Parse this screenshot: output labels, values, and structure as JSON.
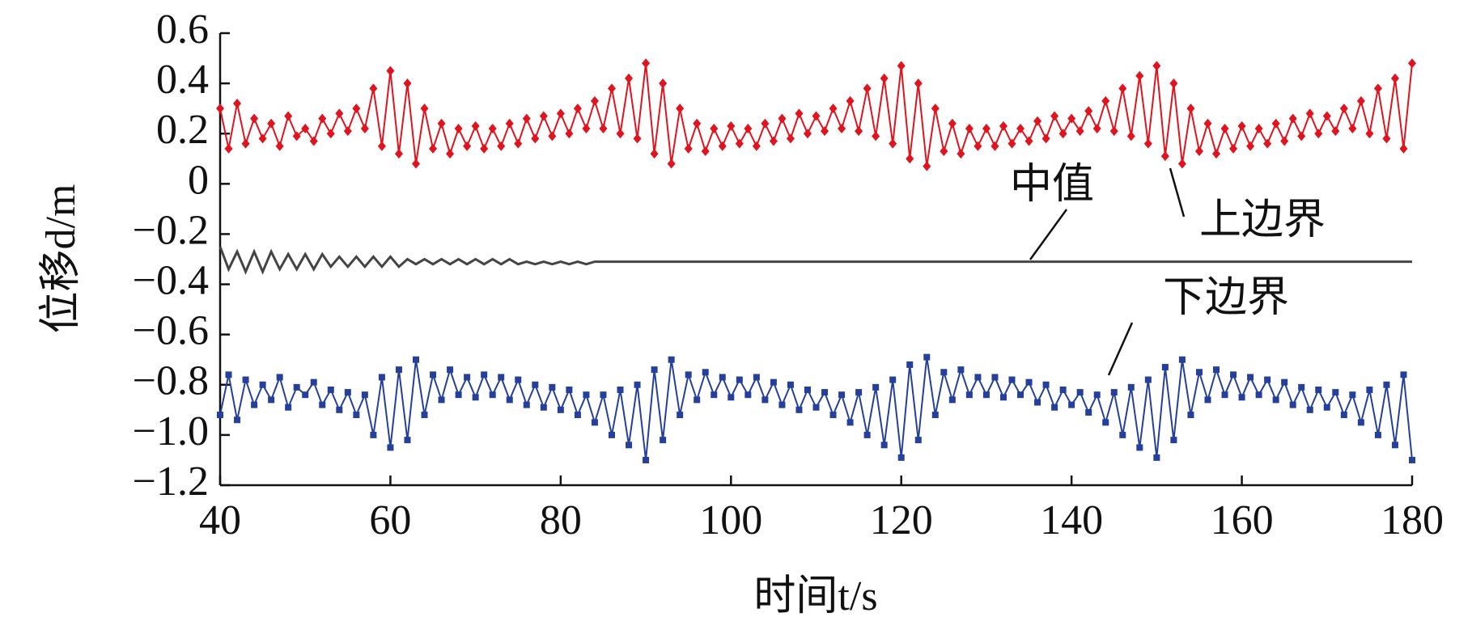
{
  "chart_data": {
    "type": "line",
    "xlabel": "时间t/s",
    "ylabel": "位移d/m",
    "annotations": [
      "中值",
      "上边界",
      "下边界"
    ],
    "x": [
      40,
      41,
      42,
      43,
      44,
      45,
      46,
      47,
      48,
      49,
      50,
      51,
      52,
      53,
      54,
      55,
      56,
      57,
      58,
      59,
      60,
      61,
      62,
      63,
      64,
      65,
      66,
      67,
      68,
      69,
      70,
      71,
      72,
      73,
      74,
      75,
      76,
      77,
      78,
      79,
      80,
      81,
      82,
      83,
      84,
      85,
      86,
      87,
      88,
      89,
      90,
      91,
      92,
      93,
      94,
      95,
      96,
      97,
      98,
      99,
      100,
      101,
      102,
      103,
      104,
      105,
      106,
      107,
      108,
      109,
      110,
      111,
      112,
      113,
      114,
      115,
      116,
      117,
      118,
      119,
      120,
      121,
      122,
      123,
      124,
      125,
      126,
      127,
      128,
      129,
      130,
      131,
      132,
      133,
      134,
      135,
      136,
      137,
      138,
      139,
      140,
      141,
      142,
      143,
      144,
      145,
      146,
      147,
      148,
      149,
      150,
      151,
      152,
      153,
      154,
      155,
      156,
      157,
      158,
      159,
      160,
      161,
      162,
      163,
      164,
      165,
      166,
      167,
      168,
      169,
      170,
      171,
      172,
      173,
      174,
      175,
      176,
      177,
      178,
      179,
      180
    ],
    "series": [
      {
        "name": "上边界",
        "color": "#e0141e",
        "marker": "diamond",
        "values": [
          0.3,
          0.14,
          0.32,
          0.16,
          0.26,
          0.18,
          0.24,
          0.15,
          0.27,
          0.19,
          0.22,
          0.17,
          0.26,
          0.2,
          0.28,
          0.21,
          0.3,
          0.22,
          0.38,
          0.15,
          0.45,
          0.12,
          0.4,
          0.08,
          0.3,
          0.14,
          0.24,
          0.12,
          0.22,
          0.15,
          0.23,
          0.14,
          0.22,
          0.15,
          0.24,
          0.16,
          0.26,
          0.18,
          0.27,
          0.19,
          0.28,
          0.2,
          0.3,
          0.22,
          0.33,
          0.22,
          0.38,
          0.2,
          0.42,
          0.18,
          0.48,
          0.12,
          0.4,
          0.08,
          0.3,
          0.14,
          0.24,
          0.13,
          0.22,
          0.15,
          0.23,
          0.16,
          0.22,
          0.15,
          0.24,
          0.17,
          0.26,
          0.18,
          0.28,
          0.2,
          0.27,
          0.21,
          0.3,
          0.22,
          0.33,
          0.21,
          0.38,
          0.19,
          0.42,
          0.16,
          0.47,
          0.1,
          0.4,
          0.07,
          0.3,
          0.13,
          0.24,
          0.12,
          0.22,
          0.15,
          0.22,
          0.15,
          0.23,
          0.16,
          0.22,
          0.17,
          0.25,
          0.18,
          0.27,
          0.2,
          0.26,
          0.21,
          0.29,
          0.22,
          0.33,
          0.21,
          0.38,
          0.19,
          0.43,
          0.16,
          0.47,
          0.11,
          0.4,
          0.08,
          0.3,
          0.13,
          0.24,
          0.12,
          0.22,
          0.14,
          0.23,
          0.15,
          0.22,
          0.16,
          0.24,
          0.17,
          0.26,
          0.19,
          0.28,
          0.2,
          0.27,
          0.21,
          0.3,
          0.22,
          0.33,
          0.2,
          0.38,
          0.18,
          0.42,
          0.14,
          0.48
        ]
      },
      {
        "name": "中值",
        "color": "#444444",
        "marker": "none",
        "values": [
          -0.25,
          -0.34,
          -0.27,
          -0.35,
          -0.27,
          -0.35,
          -0.27,
          -0.34,
          -0.28,
          -0.34,
          -0.28,
          -0.34,
          -0.28,
          -0.33,
          -0.29,
          -0.33,
          -0.29,
          -0.33,
          -0.29,
          -0.33,
          -0.29,
          -0.33,
          -0.3,
          -0.32,
          -0.3,
          -0.32,
          -0.3,
          -0.32,
          -0.3,
          -0.32,
          -0.3,
          -0.32,
          -0.3,
          -0.32,
          -0.3,
          -0.32,
          -0.31,
          -0.32,
          -0.31,
          -0.32,
          -0.31,
          -0.32,
          -0.31,
          -0.32,
          -0.31,
          -0.31,
          -0.31,
          -0.31,
          -0.31,
          -0.31,
          -0.31,
          -0.31,
          -0.31,
          -0.31,
          -0.31,
          -0.31,
          -0.31,
          -0.31,
          -0.31,
          -0.31,
          -0.31,
          -0.31,
          -0.31,
          -0.31,
          -0.31,
          -0.31,
          -0.31,
          -0.31,
          -0.31,
          -0.31,
          -0.31,
          -0.31,
          -0.31,
          -0.31,
          -0.31,
          -0.31,
          -0.31,
          -0.31,
          -0.31,
          -0.31,
          -0.31,
          -0.31,
          -0.31,
          -0.31,
          -0.31,
          -0.31,
          -0.31,
          -0.31,
          -0.31,
          -0.31,
          -0.31,
          -0.31,
          -0.31,
          -0.31,
          -0.31,
          -0.31,
          -0.31,
          -0.31,
          -0.31,
          -0.31,
          -0.31,
          -0.31,
          -0.31,
          -0.31,
          -0.31,
          -0.31,
          -0.31,
          -0.31,
          -0.31,
          -0.31,
          -0.31,
          -0.31,
          -0.31,
          -0.31,
          -0.31,
          -0.31,
          -0.31,
          -0.31,
          -0.31,
          -0.31,
          -0.31,
          -0.31,
          -0.31,
          -0.31,
          -0.31,
          -0.31,
          -0.31,
          -0.31,
          -0.31,
          -0.31,
          -0.31,
          -0.31,
          -0.31,
          -0.31,
          -0.31,
          -0.31,
          -0.31,
          -0.31,
          -0.31,
          -0.31,
          -0.31
        ]
      },
      {
        "name": "下边界",
        "color": "#24409a",
        "marker": "square",
        "values": [
          -0.92,
          -0.76,
          -0.94,
          -0.78,
          -0.88,
          -0.8,
          -0.86,
          -0.77,
          -0.89,
          -0.81,
          -0.84,
          -0.79,
          -0.88,
          -0.82,
          -0.9,
          -0.83,
          -0.92,
          -0.84,
          -1.0,
          -0.77,
          -1.05,
          -0.74,
          -1.02,
          -0.7,
          -0.92,
          -0.76,
          -0.86,
          -0.74,
          -0.84,
          -0.77,
          -0.85,
          -0.76,
          -0.84,
          -0.77,
          -0.86,
          -0.78,
          -0.88,
          -0.8,
          -0.89,
          -0.81,
          -0.9,
          -0.82,
          -0.92,
          -0.84,
          -0.95,
          -0.84,
          -1.0,
          -0.82,
          -1.04,
          -0.8,
          -1.1,
          -0.74,
          -1.02,
          -0.7,
          -0.92,
          -0.76,
          -0.86,
          -0.75,
          -0.84,
          -0.77,
          -0.85,
          -0.78,
          -0.84,
          -0.77,
          -0.86,
          -0.79,
          -0.88,
          -0.8,
          -0.9,
          -0.82,
          -0.89,
          -0.83,
          -0.92,
          -0.84,
          -0.95,
          -0.83,
          -1.0,
          -0.81,
          -1.04,
          -0.78,
          -1.09,
          -0.72,
          -1.02,
          -0.69,
          -0.92,
          -0.75,
          -0.86,
          -0.74,
          -0.84,
          -0.77,
          -0.84,
          -0.77,
          -0.85,
          -0.78,
          -0.84,
          -0.79,
          -0.87,
          -0.8,
          -0.89,
          -0.82,
          -0.88,
          -0.83,
          -0.91,
          -0.84,
          -0.95,
          -0.83,
          -1.0,
          -0.81,
          -1.05,
          -0.78,
          -1.09,
          -0.73,
          -1.02,
          -0.7,
          -0.92,
          -0.75,
          -0.86,
          -0.74,
          -0.84,
          -0.76,
          -0.85,
          -0.77,
          -0.84,
          -0.78,
          -0.86,
          -0.79,
          -0.88,
          -0.81,
          -0.9,
          -0.82,
          -0.89,
          -0.83,
          -0.92,
          -0.84,
          -0.95,
          -0.82,
          -1.0,
          -0.8,
          -1.04,
          -0.76,
          -1.1
        ]
      }
    ],
    "xlim": [
      40,
      180
    ],
    "xticks": [
      40,
      60,
      80,
      100,
      120,
      140,
      160,
      180
    ],
    "ylim": [
      -1.2,
      0.6
    ],
    "yticks": [
      {
        "value": -1.2,
        "label": "−1.2"
      },
      {
        "value": -1.0,
        "label": "−1.0"
      },
      {
        "value": -0.8,
        "label": "−0.8"
      },
      {
        "value": -0.6,
        "label": "−0.6"
      },
      {
        "value": -0.4,
        "label": "−0.4"
      },
      {
        "value": -0.2,
        "label": "−0.2"
      },
      0,
      {
        "value": 0.2,
        "label": "0.2"
      },
      {
        "value": 0.4,
        "label": "0.4"
      },
      {
        "value": 0.6,
        "label": "0.6"
      }
    ],
    "grid": false
  }
}
